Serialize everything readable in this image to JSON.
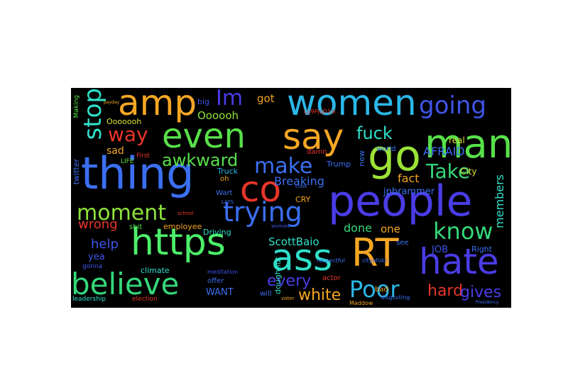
{
  "words": [
    {
      "text": "thing",
      "color": "#3b6ff2"
    },
    {
      "text": "people",
      "color": "#4a3ce6"
    },
    {
      "text": "https",
      "color": "#4cf06a"
    },
    {
      "text": "ass",
      "color": "#2ee0c9"
    },
    {
      "text": "RT",
      "color": "#f5a623"
    },
    {
      "text": "hate",
      "color": "#4a3ce6"
    },
    {
      "text": "co",
      "color": "#e8352a"
    },
    {
      "text": "even",
      "color": "#58e04a"
    },
    {
      "text": "say",
      "color": "#f5a623"
    },
    {
      "text": "women",
      "color": "#2ab8e8"
    },
    {
      "text": "go",
      "color": "#9be336"
    },
    {
      "text": "man",
      "color": "#58e04a"
    },
    {
      "text": "amp",
      "color": "#f5a623"
    },
    {
      "text": "believe",
      "color": "#34d77a"
    },
    {
      "text": "trying",
      "color": "#3b6ff2"
    },
    {
      "text": "going",
      "color": "#3f55e8"
    },
    {
      "text": "moment",
      "color": "#8ee23a"
    },
    {
      "text": "know",
      "color": "#34d77a"
    },
    {
      "text": "Poor",
      "color": "#2ab8e8"
    },
    {
      "text": "stop",
      "color": "#2ee0c9"
    },
    {
      "text": "Im",
      "color": "#4a3ce6"
    },
    {
      "text": "way",
      "color": "#e8352a"
    },
    {
      "text": "make",
      "color": "#3b6ff2"
    },
    {
      "text": "awkward",
      "color": "#58e04a"
    },
    {
      "text": "fuck",
      "color": "#2ee0c9"
    },
    {
      "text": "Take",
      "color": "#34d77a"
    },
    {
      "text": "every",
      "color": "#4a3ce6"
    },
    {
      "text": "hard",
      "color": "#e8352a"
    },
    {
      "text": "white",
      "color": "#f5a623"
    },
    {
      "text": "gives",
      "color": "#4a3ce6"
    },
    {
      "text": "Breaking",
      "color": "#3b6ff2"
    },
    {
      "text": "ScottBaio",
      "color": "#2ee0c9"
    },
    {
      "text": "wrong",
      "color": "#e8352a"
    },
    {
      "text": "help",
      "color": "#3f55e8"
    },
    {
      "text": "done",
      "color": "#34d77a"
    },
    {
      "text": "fact",
      "color": "#f5a623"
    },
    {
      "text": "AFRAID",
      "color": "#3b6ff2"
    },
    {
      "text": "members",
      "color": "#2ee0c9"
    },
    {
      "text": "got",
      "color": "#f5a623"
    },
    {
      "text": "Oooooh",
      "color": "#8ee23a"
    },
    {
      "text": "Ooooooh",
      "color": "#d9e336"
    },
    {
      "text": "sad",
      "color": "#f5a623"
    },
    {
      "text": "yea",
      "color": "#3f55e8"
    },
    {
      "text": "one",
      "color": "#f5a623"
    },
    {
      "text": "JOB",
      "color": "#3f55e8"
    },
    {
      "text": "Right",
      "color": "#3b6ff2"
    },
    {
      "text": "climate",
      "color": "#2ee0c9"
    },
    {
      "text": "employee",
      "color": "#f5a623"
    },
    {
      "text": "Driving",
      "color": "#2ee0c9"
    },
    {
      "text": "Truck",
      "color": "#2ab8e8"
    },
    {
      "text": "Trump",
      "color": "#3b6ff2"
    },
    {
      "text": "CRY",
      "color": "#f5a623"
    },
    {
      "text": "WANT",
      "color": "#3b6ff2"
    },
    {
      "text": "offer",
      "color": "#3b6ff2"
    },
    {
      "text": "will",
      "color": "#3b6ff2"
    },
    {
      "text": "bad",
      "color": "#f5a623"
    },
    {
      "text": "actor",
      "color": "#e8352a"
    },
    {
      "text": "see",
      "color": "#3b6ff2"
    },
    {
      "text": "City",
      "color": "#d9e336"
    },
    {
      "text": "jpbrammer",
      "color": "#3b6ff2"
    },
    {
      "text": "real",
      "color": "#d9e336"
    },
    {
      "text": "big",
      "color": "#3f55e8"
    },
    {
      "text": "oh",
      "color": "#f5a623"
    },
    {
      "text": "Wart",
      "color": "#3b6ff2"
    },
    {
      "text": "shit",
      "color": "#58e04a"
    },
    {
      "text": "gonna",
      "color": "#3f55e8"
    },
    {
      "text": "leadership",
      "color": "#2ee0c9"
    },
    {
      "text": "election",
      "color": "#e8352a"
    },
    {
      "text": "twitter",
      "color": "#3b6ff2"
    },
    {
      "text": "LIFE",
      "color": "#58e04a"
    },
    {
      "text": "First",
      "color": "#e8352a"
    },
    {
      "text": "Making",
      "color": "#58e04a"
    },
    {
      "text": "new",
      "color": "#3b6ff2"
    },
    {
      "text": "world",
      "color": "#3b6ff2"
    },
    {
      "text": "damn",
      "color": "#e8352a"
    },
    {
      "text": "doughnut",
      "color": "#2ee0c9"
    },
    {
      "text": "respectful",
      "color": "#3b6ff2"
    },
    {
      "text": "cityofokc",
      "color": "#3b6ff2"
    },
    {
      "text": "Maddow",
      "color": "#f5a623"
    },
    {
      "text": "disgusting",
      "color": "#3b6ff2"
    },
    {
      "text": "meditation",
      "color": "#3f55e8"
    },
    {
      "text": "Lp9PjqD1ik",
      "color": "#e8352a"
    },
    {
      "text": "LAYS",
      "color": "#3b6ff2"
    },
    {
      "text": "school",
      "color": "#e8352a"
    },
    {
      "text": "woman",
      "color": "#3f55e8"
    },
    {
      "text": "voter",
      "color": "#f5a623"
    },
    {
      "text": "cook",
      "color": "#3b6ff2"
    },
    {
      "text": "payday",
      "color": "#f5a623"
    },
    {
      "text": "Presidency",
      "color": "#3b6ff2"
    }
  ]
}
